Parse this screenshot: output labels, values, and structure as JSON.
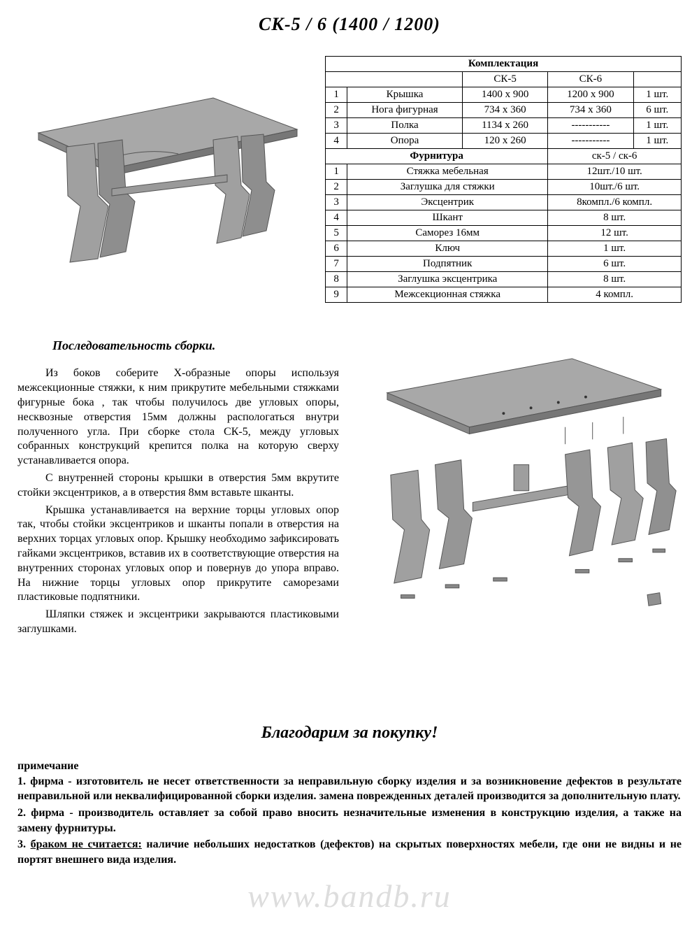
{
  "title": "СК-5 / 6   (1400 / 1200)",
  "specTable": {
    "headers": {
      "komplekt": "Комплектация",
      "sk5": "СК-5",
      "sk6": "СК-6",
      "furnitura": "Фурнитура",
      "sk56": "ск-5 / ск-6"
    },
    "partsRows": [
      {
        "n": "1",
        "name": "Крышка",
        "sk5": "1400 x 900",
        "sk6": "1200 x 900",
        "qty": "1 шт."
      },
      {
        "n": "2",
        "name": "Нога фигурная",
        "sk5": "734 x 360",
        "sk6": "734 x 360",
        "qty": "6 шт."
      },
      {
        "n": "3",
        "name": "Полка",
        "sk5": "1134 x 260",
        "sk6": "-----------",
        "qty": "1 шт."
      },
      {
        "n": "4",
        "name": "Опора",
        "sk5": "120 x 260",
        "sk6": "-----------",
        "qty": "1 шт."
      }
    ],
    "hardwareRows": [
      {
        "n": "1",
        "name": "Стяжка мебельная",
        "qty": "12шт./10 шт."
      },
      {
        "n": "2",
        "name": "Заглушка для стяжки",
        "qty": "10шт./6 шт."
      },
      {
        "n": "3",
        "name": "Эксцентрик",
        "qty": "8компл./6 компл."
      },
      {
        "n": "4",
        "name": "Шкант",
        "qty": "8 шт."
      },
      {
        "n": "5",
        "name": "Саморез 16мм",
        "qty": "12 шт."
      },
      {
        "n": "6",
        "name": "Ключ",
        "qty": "1 шт."
      },
      {
        "n": "7",
        "name": "Подпятник",
        "qty": "6 шт."
      },
      {
        "n": "8",
        "name": "Заглушка эксцентрика",
        "qty": "8 шт."
      },
      {
        "n": "9",
        "name": "Межсекционная стяжка",
        "qty": "4 компл."
      }
    ]
  },
  "instructions": {
    "title": "Последовательность сборки.",
    "p1": "Из боков соберите Х-образные опоры используя межсекционные стяжки, к ним прикрутите мебельными стяжками фигурные бока , так чтобы получилось две угловых опоры, несквозные отверстия 15мм должны распологаться внутри полученного угла. При сборке стола СК-5, между угловых  собранных конструкций крепится полка на которую сверху устанавливается опора.",
    "p2": "С внутренней стороны крышки в отверстия 5мм вкрутите стойки эксцентриков, а в отверстия 8мм вставьте шканты.",
    "p3": "Крышка устанавливается на верхние торцы угловых опор так, чтобы стойки эксцентриков и шканты попали в отверстия на верхних торцах угловых опор. Крышку необходимо зафиксировать гайками эксцентриков, вставив их в соответствующие отверстия на внутренних сторонах угловых опор и повернув до упора вправо. На нижние торцы угловых опор прикрутите саморезами пластиковые подпятники.",
    "p4": "Шляпки стяжек и эксцентрики закрываются пластиковыми заглушками."
  },
  "thanks": "Благодарим за покупку!",
  "notes": {
    "title": "примечание",
    "n1": "1.   фирма - изготовитель не несет ответственности за неправильную сборку изделия и за возникновение дефектов в результате неправильной или неквалифицированной сборки изделия. замена поврежденных деталей производится за дополнительную плату.",
    "n2": "2.   фирма - производитель оставляет за собой право вносить незначительные изменения в конструкцию изделия, а также на замену фурнитуры.",
    "n3_prefix": "3.   ",
    "n3_underlined": "браком не считается:",
    "n3_rest": " наличие небольших недостатков (дефектов) на скрытых поверхностях   мебели, где они не видны и не портят внешнего вида изделия."
  },
  "watermark": "www.bandb.ru",
  "style": {
    "colors": {
      "tableFill": "#a8a8a8",
      "tableEdge": "#6b6b6b",
      "tableShadow": "#5c5c5c",
      "background": "#ffffff",
      "watermark": "#dddddd"
    }
  }
}
